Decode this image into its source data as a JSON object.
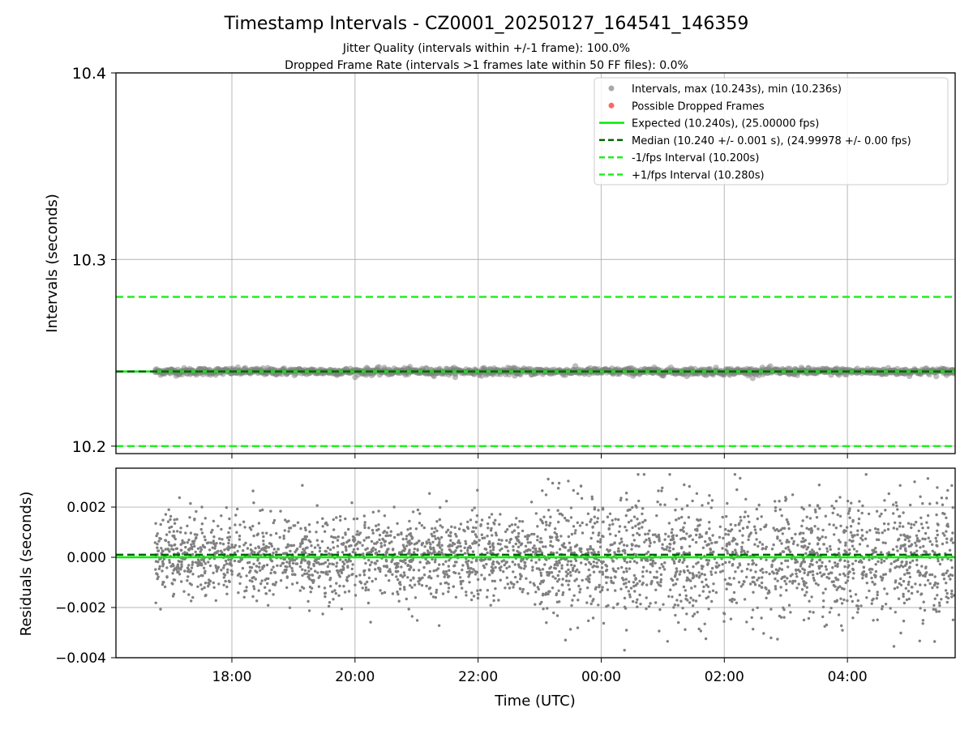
{
  "title": "Timestamp Intervals - CZ0001_20250127_164541_146359",
  "subtitle_lines": [
    "Jitter Quality (intervals within +/-1 frame): 100.0%",
    "Dropped Frame Rate (intervals >1 frames late within 50 FF files): 0.0%"
  ],
  "colors": {
    "points": "#808080",
    "points_legend": "#a9a9a9",
    "dropped": "#ff6666",
    "expected": "#00ee00",
    "median": "#006400",
    "fps_bounds": "#22ee22",
    "grid": "#b0b0b0"
  },
  "chart_data": [
    {
      "type": "scatter",
      "ylabel": "Intervals (seconds)",
      "xlabel": "",
      "ylim": [
        10.196,
        10.4
      ],
      "y_ticks": [
        "10.2",
        "10.3",
        "10.4"
      ],
      "y_tick_values": [
        10.2,
        10.3,
        10.4
      ],
      "grid": true,
      "legend_position": "top-right",
      "legend": [
        "Intervals, max (10.243s), min (10.236s)",
        "Possible Dropped Frames",
        "Expected (10.240s), (25.00000 fps)",
        "Median (10.240 +/- 0.001 s), (24.99978 +/- 0.00 fps)",
        "-1/fps Interval (10.200s)",
        "+1/fps Interval (10.280s)"
      ],
      "series": [
        {
          "name": "Intervals, max (10.243s), min (10.236s)",
          "x_range": [
            "16:45",
            "05:45"
          ],
          "y_min": 10.236,
          "y_max": 10.243,
          "center": 10.24
        },
        {
          "name": "Possible Dropped Frames",
          "values": []
        }
      ],
      "reference_lines": {
        "expected": 10.24,
        "median": 10.24,
        "minus_1_fps": 10.2,
        "plus_1_fps": 10.28
      }
    },
    {
      "type": "scatter",
      "ylabel": "Residuals (seconds)",
      "xlabel": "Time (UTC)",
      "ylim": [
        -0.004,
        0.00355
      ],
      "y_ticks": [
        "0.002",
        "0.000",
        "−0.002",
        "−0.004"
      ],
      "y_tick_values": [
        0.002,
        0.0,
        -0.002,
        -0.004
      ],
      "x_range": [
        "16:07",
        "05:45"
      ],
      "x_ticks": [
        "18:00",
        "20:00",
        "22:00",
        "00:00",
        "02:00",
        "04:00"
      ],
      "grid": true,
      "series": [
        {
          "name": "Residuals",
          "x_range": [
            "16:45",
            "05:45"
          ],
          "y_min": -0.0037,
          "y_max": 0.0033,
          "spread_sd_before_23h": 0.0008,
          "spread_sd_after_23h": 0.0012
        }
      ],
      "reference_lines": {
        "zero": 0.0,
        "median_offset": 0.0001
      }
    }
  ]
}
